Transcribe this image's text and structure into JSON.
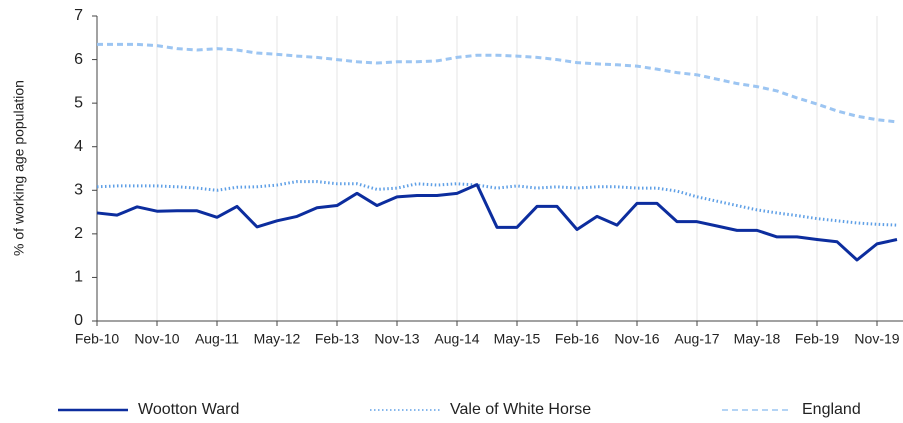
{
  "chart_data": {
    "type": "line",
    "y_label": "% of working age population",
    "categories": [
      "Feb-10",
      null,
      null,
      "Nov-10",
      null,
      null,
      "Aug-11",
      null,
      null,
      "May-12",
      null,
      null,
      "Feb-13",
      null,
      null,
      "Nov-13",
      null,
      null,
      "Aug-14",
      null,
      null,
      "May-15",
      null,
      null,
      "Feb-16",
      null,
      null,
      "Nov-16",
      null,
      null,
      "Aug-17",
      null,
      null,
      "May-18",
      null,
      null,
      "Feb-19",
      null,
      null,
      "Nov-19",
      null
    ],
    "series": [
      {
        "name": "Wootton Ward",
        "color": "#0c2d9e",
        "dash": "solid",
        "values": [
          2.48,
          2.43,
          2.62,
          2.52,
          2.53,
          2.53,
          2.38,
          2.63,
          2.16,
          2.3,
          2.4,
          2.6,
          2.65,
          2.93,
          2.65,
          2.85,
          2.88,
          2.88,
          2.93,
          3.13,
          2.15,
          2.15,
          2.63,
          2.63,
          2.1,
          2.4,
          2.2,
          2.7,
          2.7,
          2.28,
          2.28,
          2.18,
          2.08,
          2.08,
          1.93,
          1.93,
          1.87,
          1.82,
          1.4,
          1.77,
          1.87
        ]
      },
      {
        "name": "Vale of White Horse",
        "color": "#5e9fe6",
        "dash": "dotted",
        "values": [
          3.08,
          3.1,
          3.1,
          3.1,
          3.08,
          3.05,
          3.0,
          3.07,
          3.08,
          3.12,
          3.2,
          3.2,
          3.15,
          3.15,
          3.02,
          3.05,
          3.15,
          3.12,
          3.15,
          3.12,
          3.05,
          3.1,
          3.05,
          3.08,
          3.05,
          3.08,
          3.08,
          3.05,
          3.05,
          2.98,
          2.85,
          2.75,
          2.65,
          2.55,
          2.48,
          2.42,
          2.35,
          2.3,
          2.25,
          2.22,
          2.2
        ]
      },
      {
        "name": "England",
        "color": "#9cc5f2",
        "dash": "dashed",
        "values": [
          6.35,
          6.35,
          6.35,
          6.32,
          6.25,
          6.22,
          6.25,
          6.22,
          6.15,
          6.12,
          6.08,
          6.05,
          6.0,
          5.95,
          5.92,
          5.95,
          5.95,
          5.97,
          6.05,
          6.1,
          6.1,
          6.08,
          6.05,
          6.0,
          5.93,
          5.9,
          5.88,
          5.85,
          5.78,
          5.7,
          5.65,
          5.55,
          5.45,
          5.38,
          5.28,
          5.12,
          4.98,
          4.82,
          4.7,
          4.62,
          4.57
        ]
      }
    ],
    "ylim": [
      0,
      7
    ],
    "yticks": [
      0,
      1,
      2,
      3,
      4,
      5,
      6,
      7
    ],
    "grid": "x",
    "legend": "bottom"
  }
}
